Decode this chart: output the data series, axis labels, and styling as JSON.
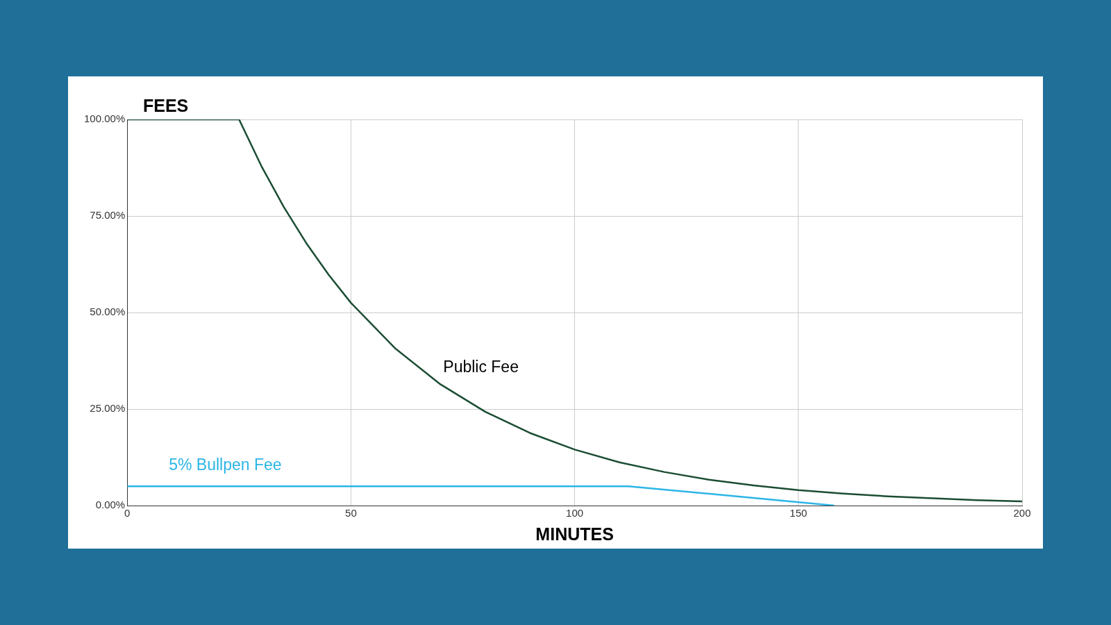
{
  "chart_data": {
    "type": "line",
    "title": "FEES",
    "xlabel": "MINUTES",
    "series": [
      {
        "name": "Public Fee",
        "color": "#1b4d33",
        "x": [
          0,
          25,
          30,
          35,
          40,
          45,
          50,
          60,
          70,
          80,
          90,
          100,
          110,
          120,
          130,
          140,
          150,
          160,
          170,
          180,
          190,
          200
        ],
        "values": [
          100,
          100,
          87.9,
          77.3,
          68,
          59.8,
          52.5,
          40.6,
          31.4,
          24.3,
          18.8,
          14.5,
          11.2,
          8.7,
          6.7,
          5.2,
          4,
          3.1,
          2.4,
          1.9,
          1.4,
          1.1
        ]
      },
      {
        "name": "5% Bullpen Fee",
        "color": "#2bb5e6",
        "x": [
          0,
          112,
          158
        ],
        "values": [
          5,
          5,
          0
        ]
      }
    ],
    "xlim": [
      0,
      200
    ],
    "xticks": [
      0,
      50,
      100,
      150,
      200
    ],
    "ylim": [
      0,
      100
    ],
    "yticks": [
      {
        "value": 0,
        "label": "0.00%"
      },
      {
        "value": 25,
        "label": "25.00%"
      },
      {
        "value": 50,
        "label": "50.00%"
      },
      {
        "value": 75,
        "label": "75.00%"
      },
      {
        "value": 100,
        "label": "100.00%"
      }
    ],
    "grid": true,
    "legend": false,
    "marker": "none",
    "line_style": "solid"
  }
}
